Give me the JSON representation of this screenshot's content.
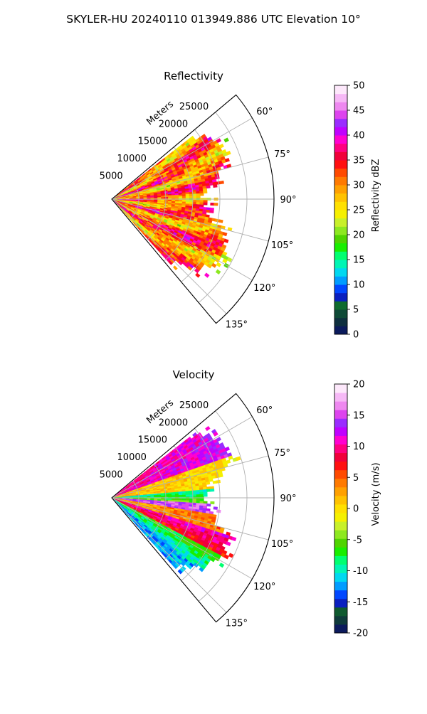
{
  "figure": {
    "suptitle": "SKYLER-HU  20240110  013949.886 UTC Elevation 10°"
  },
  "chart_data": [
    {
      "type": "heatmap",
      "projection": "polar-sector",
      "title": "Reflectivity",
      "range_label": "Meters",
      "range_ticks": [
        5000,
        10000,
        15000,
        20000,
        25000
      ],
      "azimuth_ticks": [
        "60°",
        "75°",
        "90°",
        "105°",
        "120°",
        "135°"
      ],
      "azimuth_range_deg": [
        50,
        140
      ],
      "range_max_m": 30000,
      "grid": true,
      "colorbar": {
        "label": "Reflectivity dBZ",
        "range": [
          0,
          50
        ],
        "ticks": [
          0,
          5,
          10,
          15,
          20,
          25,
          30,
          35,
          40,
          45,
          50
        ],
        "colors": [
          "#0b1a5c",
          "#0e2f3e",
          "#0f4a37",
          "#0f6b2f",
          "#0a1fbf",
          "#0047ff",
          "#009cff",
          "#00d8f0",
          "#00f5b5",
          "#00ff70",
          "#19ee00",
          "#4fd400",
          "#8de820",
          "#c8f02a",
          "#f5f000",
          "#ffe000",
          "#ffc200",
          "#ffa000",
          "#ff7a00",
          "#ff4a00",
          "#ff1010",
          "#f0003a",
          "#ff0080",
          "#ff00d0",
          "#c000ff",
          "#9a2cff",
          "#dd44ee",
          "#ee88f0",
          "#f6b8f6",
          "#fde8fb"
        ]
      }
    },
    {
      "type": "heatmap",
      "projection": "polar-sector",
      "title": "Velocity",
      "range_label": "Meters",
      "range_ticks": [
        5000,
        10000,
        15000,
        20000,
        25000
      ],
      "azimuth_ticks": [
        "60°",
        "75°",
        "90°",
        "105°",
        "120°",
        "135°"
      ],
      "azimuth_range_deg": [
        50,
        140
      ],
      "range_max_m": 30000,
      "grid": true,
      "colorbar": {
        "label": "Velocity (m/s)",
        "range": [
          -20,
          20
        ],
        "ticks": [
          -20,
          -15,
          -10,
          -5,
          0,
          5,
          10,
          15,
          20
        ],
        "colors": [
          "#0b1a5c",
          "#0e3a3a",
          "#0f5a2f",
          "#0a1fbf",
          "#0047ff",
          "#009cff",
          "#00d8f0",
          "#00f5b5",
          "#00ff70",
          "#19ee00",
          "#4fd400",
          "#8de820",
          "#c8f02a",
          "#f5f000",
          "#ffe000",
          "#ffc200",
          "#ffa000",
          "#ff7a00",
          "#ff4a00",
          "#ff1010",
          "#f0003a",
          "#ff0080",
          "#ff00d0",
          "#c000ff",
          "#9a2cff",
          "#dd44ee",
          "#ee88f0",
          "#f6b8f6",
          "#fde8fb"
        ]
      }
    }
  ]
}
